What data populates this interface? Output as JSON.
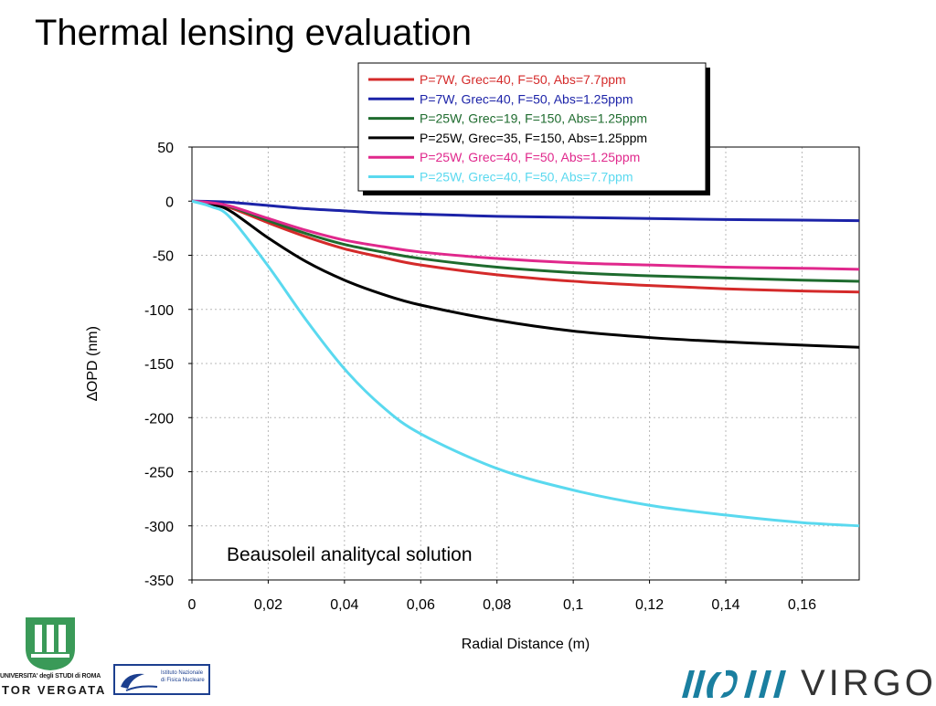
{
  "slide": {
    "title": "Thermal lensing evaluation"
  },
  "colors": {
    "red": "#d42a2a",
    "blue": "#1c23a8",
    "green": "#1e6b2e",
    "black": "#000000",
    "magenta": "#e0288c",
    "cyan": "#5ad9ef"
  },
  "chart_data": {
    "type": "line",
    "title": "",
    "xlabel": "Radial Distance (m)",
    "ylabel": "∆OPD (nm)",
    "xlim": [
      0,
      0.175
    ],
    "ylim": [
      -350,
      50
    ],
    "x_ticks": [
      "0",
      "0,02",
      "0,04",
      "0,06",
      "0,08",
      "0,1",
      "0,12",
      "0,14",
      "0,16"
    ],
    "x_tick_values": [
      0,
      0.02,
      0.04,
      0.06,
      0.08,
      0.1,
      0.12,
      0.14,
      0.16
    ],
    "y_ticks": [
      "50",
      "0",
      "-50",
      "-100",
      "-150",
      "-200",
      "-250",
      "-300",
      "-350"
    ],
    "y_tick_values": [
      50,
      0,
      -50,
      -100,
      -150,
      -200,
      -250,
      -300,
      -350
    ],
    "grid": true,
    "legend_position": "top-right",
    "annotation": "Beausoleil analitycal solution",
    "x": [
      0,
      0.005,
      0.01,
      0.02,
      0.03,
      0.04,
      0.05,
      0.06,
      0.08,
      0.1,
      0.12,
      0.14,
      0.16,
      0.175
    ],
    "series": [
      {
        "name": "P=7W, Grec=40, F=50, Abs=7.7ppm",
        "color": "#d42a2a",
        "values": [
          0,
          -2,
          -6,
          -20,
          -33,
          -44,
          -52,
          -59,
          -68,
          -74,
          -78,
          -81,
          -83,
          -84
        ]
      },
      {
        "name": "P=7W, Grec=40, F=50, Abs=1.25ppm",
        "color": "#1c23a8",
        "values": [
          0,
          -0.3,
          -1,
          -4,
          -7,
          -9,
          -11,
          -12,
          -14,
          -15,
          -16,
          -17,
          -17.5,
          -18
        ]
      },
      {
        "name": "P=25W, Grec=19, F=150, Abs=1.25ppm",
        "color": "#1e6b2e",
        "values": [
          0,
          -1.8,
          -5,
          -18,
          -30,
          -40,
          -47,
          -53,
          -61,
          -66,
          -69,
          -71,
          -73,
          -74
        ]
      },
      {
        "name": "P=25W, Grec=35, F=150, Abs=1.25ppm",
        "color": "#000000",
        "values": [
          0,
          -3,
          -9,
          -34,
          -56,
          -73,
          -86,
          -96,
          -110,
          -120,
          -126,
          -130,
          -133,
          -135
        ]
      },
      {
        "name": "P=25W, Grec=40, F=50, Abs=1.25ppm",
        "color": "#e0288c",
        "values": [
          0,
          -1.5,
          -4.5,
          -16,
          -27,
          -36,
          -42,
          -47,
          -53,
          -57,
          -59,
          -61,
          -62,
          -63
        ]
      },
      {
        "name": "P=25W, Grec=40, F=50, Abs=7.7ppm",
        "color": "#5ad9ef",
        "values": [
          0,
          -5,
          -15,
          -60,
          -110,
          -155,
          -190,
          -215,
          -247,
          -267,
          -281,
          -290,
          -297,
          -300
        ]
      }
    ]
  },
  "logos": {
    "tor_vergata_line1": "UNIVERSITA' degli STUDI di ROMA",
    "tor_vergata_line2": "TOR VERGATA",
    "infn_line1": "Istituto Nazionale",
    "infn_line2": "di Fisica Nucleare",
    "virgo_text": "VIRGO"
  }
}
